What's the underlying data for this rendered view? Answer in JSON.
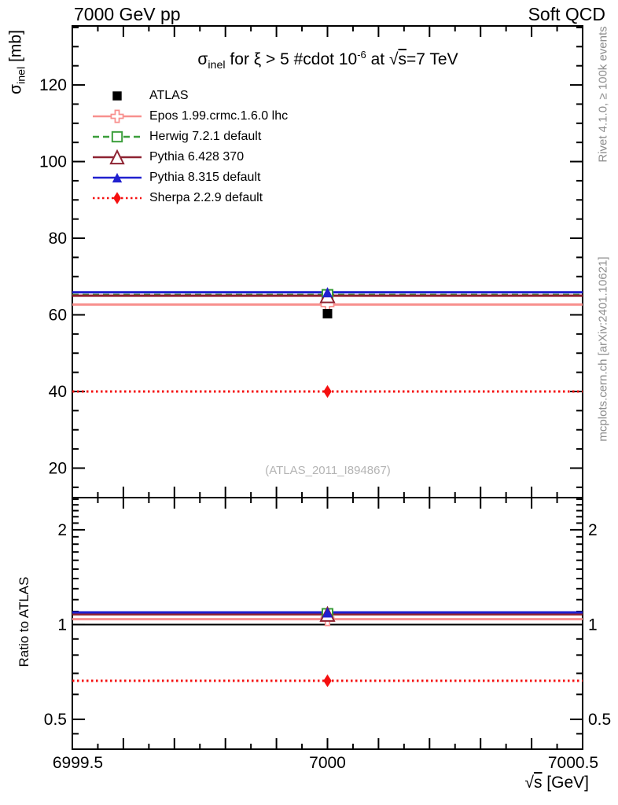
{
  "header": {
    "left": "7000 GeV pp",
    "right": "Soft QCD"
  },
  "right_margin": {
    "rivet": "Rivet 4.1.0, ≥ 100k events",
    "mcplots": "mcplots.cern.ch [arXiv:2401.10621]"
  },
  "watermark": "(ATLAS_2011_I894867)",
  "title_parts": {
    "sigma": "σ",
    "sigma_sub": "inel",
    "middle": " for ξ > 5 #cdot 10",
    "exponent": "-6",
    "at": " at ",
    "sqrt": "√",
    "sqrt_arg": "s",
    "tail": "=7 TeV"
  },
  "axes": {
    "main_ylabel": {
      "sigma": "σ",
      "sub": "inel",
      "units": " [mb]"
    },
    "ratio_ylabel": "Ratio to ATLAS",
    "xlabel": {
      "sqrt": "√",
      "arg": "s",
      "units": " [GeV]"
    }
  },
  "chart_data": [
    {
      "type": "line",
      "panel": "main",
      "title": "σ_inel for ξ > 5 #cdot 10^-6 at √s=7 TeV",
      "ylabel": "σ_inel [mb]",
      "xlabel": "√s [GeV]",
      "xlim": [
        6999.5,
        7000.5
      ],
      "ylim": [
        12.3,
        135.4
      ],
      "yticks": [
        20,
        40,
        60,
        80,
        100,
        120
      ],
      "ytick_labels": [
        "20",
        "40",
        "60",
        "80",
        "100",
        "120"
      ],
      "y_minor_step": 5,
      "xticks": [
        6999.5,
        7000,
        7000.5
      ],
      "xtick_labels": [
        "6999.5",
        "7000",
        "7000.5"
      ],
      "x_minor_step": 0.05,
      "grid": false,
      "legend_position": "top-left",
      "series": [
        {
          "name": "ATLAS",
          "kind": "data-point",
          "marker": "filled-square",
          "color": "#000000",
          "x": 7000,
          "y": 60.3
        },
        {
          "name": "Epos 1.99.crmc.1.6.0 lhc",
          "kind": "hline",
          "line": "solid",
          "marker": "open-cross",
          "color": "#f8908e",
          "y": 62.7,
          "marker_x": 7000
        },
        {
          "name": "Herwig 7.2.1 default",
          "kind": "hline",
          "line": "dashed",
          "marker": "open-square",
          "color": "#3b9e3b",
          "y": 65.2,
          "marker_x": 7000
        },
        {
          "name": "Pythia 6.428 370",
          "kind": "hline",
          "line": "solid",
          "marker": "open-triangle",
          "color": "#8e2332",
          "y": 65.0,
          "marker_x": 7000
        },
        {
          "name": "Pythia 8.315 default",
          "kind": "hline",
          "line": "solid",
          "marker": "filled-triangle",
          "color": "#2020cf",
          "y": 65.9,
          "marker_x": 7000
        },
        {
          "name": "Sherpa 2.2.9 default",
          "kind": "hline",
          "line": "dotted",
          "marker": "filled-diamond",
          "color": "#f50f0f",
          "y": 40.0,
          "marker_x": 7000
        }
      ]
    },
    {
      "type": "line",
      "panel": "ratio",
      "ylabel": "Ratio to ATLAS",
      "yscale": "log",
      "xlim": [
        6999.5,
        7000.5
      ],
      "ylim": [
        0.402,
        2.53
      ],
      "yticks": [
        0.5,
        1,
        2
      ],
      "ytick_labels": [
        "0.5",
        "1",
        "2"
      ],
      "y_minor_ticks": [
        0.45,
        0.6,
        0.7,
        0.8,
        0.9,
        1.1,
        1.2,
        1.3,
        1.4,
        1.5,
        1.6,
        1.7,
        1.8,
        1.9,
        2.1,
        2.2,
        2.3,
        2.4,
        2.5
      ],
      "reference_line": 1.0,
      "series": [
        {
          "name": "Epos 1.99.crmc.1.6.0 lhc",
          "line": "solid",
          "marker": "open-cross",
          "color": "#f8908e",
          "y": 1.04,
          "marker_x": 7000
        },
        {
          "name": "Herwig 7.2.1 default",
          "line": "dashed",
          "marker": "open-square",
          "color": "#3b9e3b",
          "y": 1.081,
          "marker_x": 7000
        },
        {
          "name": "Pythia 6.428 370",
          "line": "solid",
          "marker": "open-triangle",
          "color": "#8e2332",
          "y": 1.078,
          "marker_x": 7000
        },
        {
          "name": "Pythia 8.315 default",
          "line": "solid",
          "marker": "filled-triangle",
          "color": "#2020cf",
          "y": 1.093,
          "marker_x": 7000
        },
        {
          "name": "Sherpa 2.2.9 default",
          "line": "dotted",
          "marker": "filled-diamond",
          "color": "#f50f0f",
          "y": 0.663,
          "marker_x": 7000
        }
      ]
    }
  ]
}
